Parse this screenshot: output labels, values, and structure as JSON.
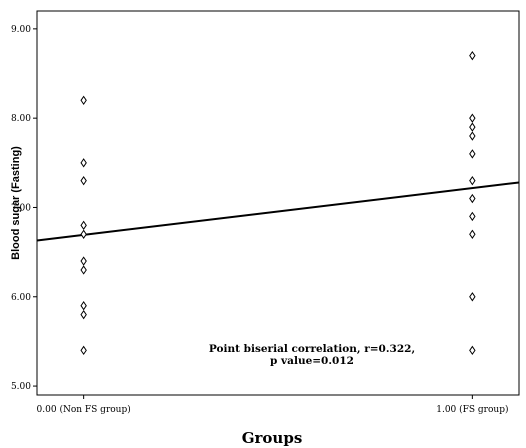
{
  "chart_data": {
    "type": "scatter",
    "title": "",
    "xlabel": "Groups",
    "ylabel": "Blood sugar (Fasting)",
    "xlim": [
      -0.12,
      1.12
    ],
    "ylim": [
      4.9,
      9.2
    ],
    "x_ticks": [
      {
        "value": 0,
        "label": "0.00 (Non FS group)"
      },
      {
        "value": 1,
        "label": "1.00 (FS group)"
      }
    ],
    "y_ticks": [
      {
        "value": 5,
        "label": "5.00"
      },
      {
        "value": 6,
        "label": "6.00"
      },
      {
        "value": 7,
        "label": "7.00"
      },
      {
        "value": 8,
        "label": "8.00"
      },
      {
        "value": 9,
        "label": "9.00"
      }
    ],
    "grid": false,
    "marker": "open-diamond",
    "points": [
      {
        "x": 0,
        "y": 8.2
      },
      {
        "x": 0,
        "y": 7.5
      },
      {
        "x": 0,
        "y": 7.3
      },
      {
        "x": 0,
        "y": 6.8
      },
      {
        "x": 0,
        "y": 6.7
      },
      {
        "x": 0,
        "y": 6.4
      },
      {
        "x": 0,
        "y": 6.3
      },
      {
        "x": 0,
        "y": 5.9
      },
      {
        "x": 0,
        "y": 5.8
      },
      {
        "x": 0,
        "y": 5.4
      },
      {
        "x": 1,
        "y": 8.7
      },
      {
        "x": 1,
        "y": 8.0
      },
      {
        "x": 1,
        "y": 7.9
      },
      {
        "x": 1,
        "y": 7.8
      },
      {
        "x": 1,
        "y": 7.6
      },
      {
        "x": 1,
        "y": 7.3
      },
      {
        "x": 1,
        "y": 7.1
      },
      {
        "x": 1,
        "y": 6.9
      },
      {
        "x": 1,
        "y": 6.7
      },
      {
        "x": 1,
        "y": 6.0
      },
      {
        "x": 1,
        "y": 5.4
      }
    ],
    "fit_line": {
      "x": [
        -0.12,
        1.12
      ],
      "y": [
        6.63,
        7.28
      ]
    },
    "annotation": [
      "Point biserial correlation, r=0.322,",
      "p value=0.012"
    ]
  }
}
